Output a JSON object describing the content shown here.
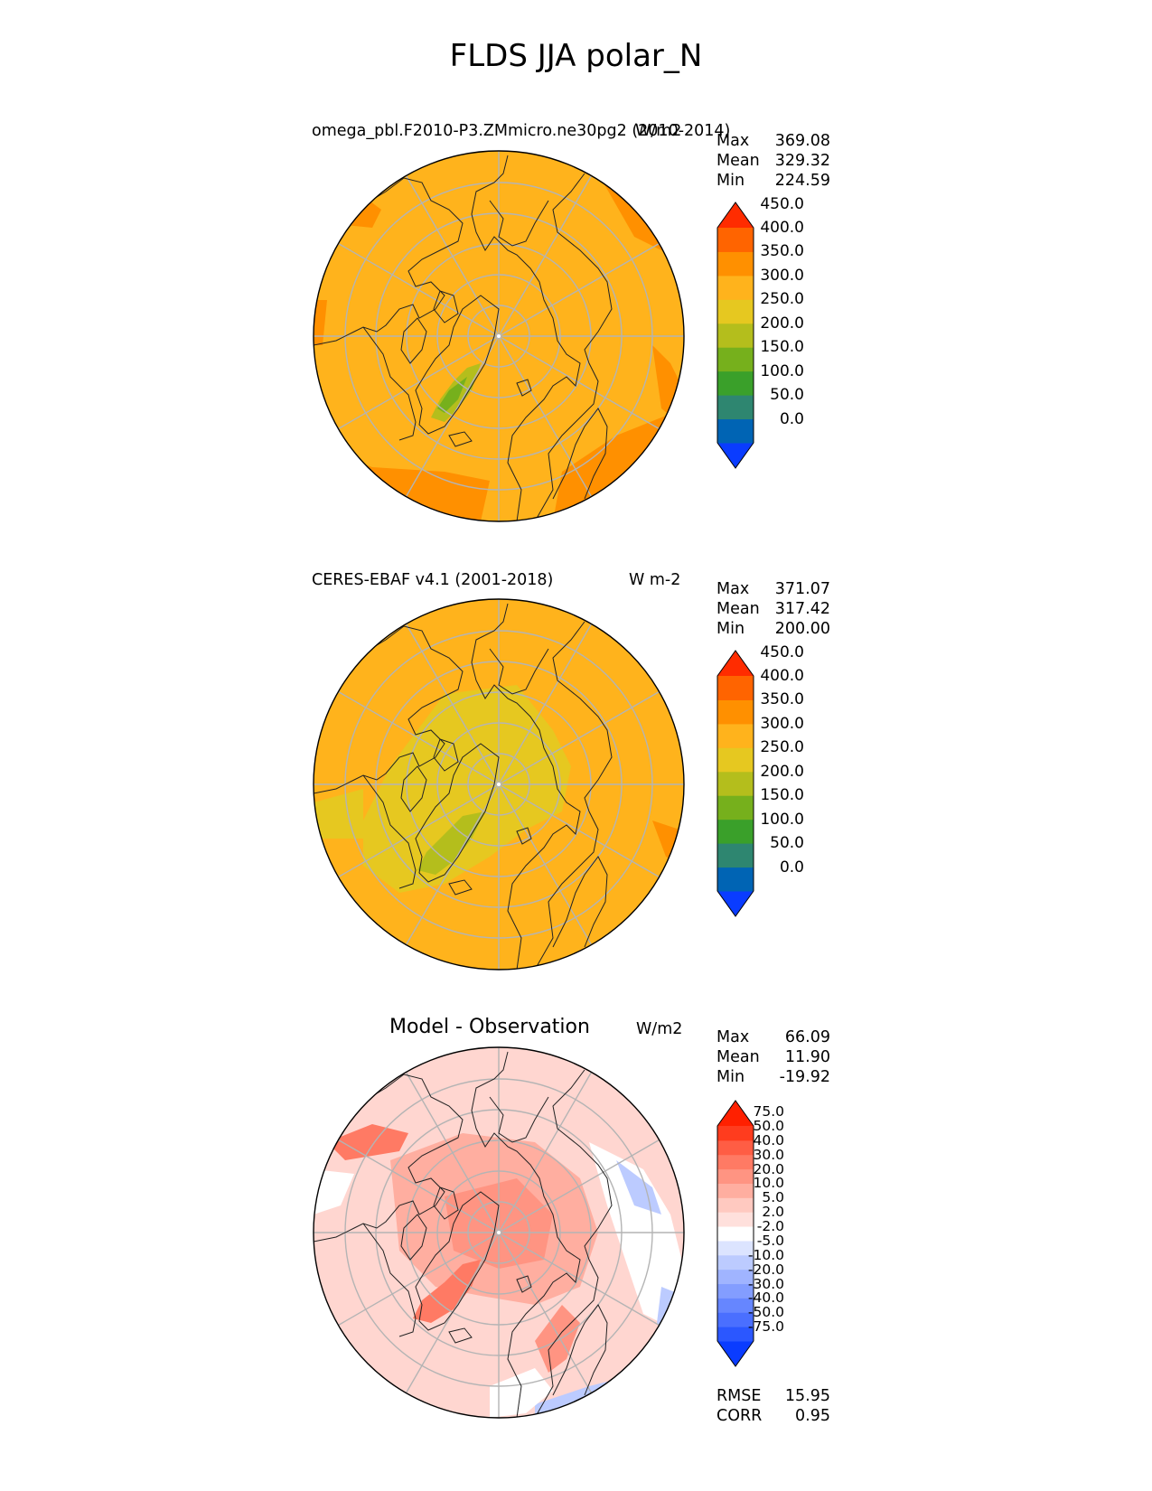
{
  "figure": {
    "title": "FLDS JJA polar_N"
  },
  "panels": [
    {
      "name": "test",
      "label_left": "omega_pbl.F2010-P3.ZMmicro.ne30pg2 (2010-2014)",
      "label_right": "W/m2",
      "stats": [
        {
          "k": "Max",
          "v": "369.08"
        },
        {
          "k": "Mean",
          "v": "329.32"
        },
        {
          "k": "Min",
          "v": "224.59"
        }
      ]
    },
    {
      "name": "reference",
      "label_left": "CERES-EBAF v4.1 (2001-2018)",
      "label_right": "W m-2",
      "stats": [
        {
          "k": "Max",
          "v": "371.07"
        },
        {
          "k": "Mean",
          "v": "317.42"
        },
        {
          "k": "Min",
          "v": "200.00"
        }
      ]
    },
    {
      "name": "difference",
      "label_center": "Model - Observation",
      "label_right": "W/m2",
      "stats": [
        {
          "k": "Max",
          "v": "66.09"
        },
        {
          "k": "Mean",
          "v": "11.90"
        },
        {
          "k": "Min",
          "v": "-19.92"
        }
      ],
      "metrics": [
        {
          "k": "RMSE",
          "v": "15.95"
        },
        {
          "k": "CORR",
          "v": "0.95"
        }
      ]
    }
  ],
  "chart_data": [
    {
      "type": "heatmap",
      "projection": "north polar stereographic",
      "colorbar": {
        "levels": [
          "0.0",
          "50.0",
          "100.0",
          "150.0",
          "200.0",
          "250.0",
          "300.0",
          "350.0",
          "400.0",
          "450.0"
        ],
        "colors": [
          "#0a3cff",
          "#0064b4",
          "#2e8670",
          "#3aa02a",
          "#76b01c",
          "#b4be1c",
          "#e6c820",
          "#ffb31c",
          "#ff9000",
          "#ff6400",
          "#ff2c00"
        ],
        "extend": "both"
      },
      "field_colors": {
        "ocean": "#ffb31c",
        "margin": "#ff9000",
        "greenland": "#b4be1c",
        "greenland_core": "#76b01c",
        "arctic": "#e6c820"
      }
    },
    {
      "type": "heatmap",
      "projection": "north polar stereographic",
      "colorbar": {
        "levels": [
          "0.0",
          "50.0",
          "100.0",
          "150.0",
          "200.0",
          "250.0",
          "300.0",
          "350.0",
          "400.0",
          "450.0"
        ],
        "colors": [
          "#0a3cff",
          "#0064b4",
          "#2e8670",
          "#3aa02a",
          "#76b01c",
          "#b4be1c",
          "#e6c820",
          "#ffb31c",
          "#ff9000",
          "#ff6400",
          "#ff2c00"
        ],
        "extend": "both"
      }
    },
    {
      "type": "heatmap",
      "projection": "north polar stereographic",
      "colorbar": {
        "levels": [
          "-75.0",
          "-50.0",
          "-40.0",
          "-30.0",
          "-20.0",
          "-10.0",
          "-5.0",
          "-2.0",
          "2.0",
          "5.0",
          "10.0",
          "20.0",
          "30.0",
          "40.0",
          "50.0",
          "75.0"
        ],
        "colors": [
          "#0a3cff",
          "#2b57ff",
          "#4a6fff",
          "#6686ff",
          "#839dff",
          "#a0b4ff",
          "#bccbff",
          "#dce4ff",
          "#ffffff",
          "#ffe0dc",
          "#ffc9c0",
          "#ffaea0",
          "#ff9482",
          "#ff7a64",
          "#ff5d44",
          "#ff3c1e",
          "#ff2000"
        ],
        "extend": "both"
      }
    }
  ]
}
